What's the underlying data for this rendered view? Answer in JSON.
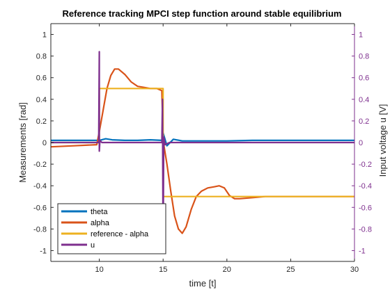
{
  "chart_data": {
    "type": "line",
    "title": "Reference tracking MPCI step function around stable equilibrium",
    "xlabel": "time [t]",
    "ylabel": "Measurements [rad]",
    "ylabel_right": "Input voltage u [V]",
    "xlim": [
      6.2,
      30
    ],
    "ylim": [
      -1.1,
      1.1
    ],
    "ylim_right": [
      -1.1,
      1.1
    ],
    "x_ticks": [
      10,
      15,
      20,
      25,
      30
    ],
    "y_ticks": [
      -1,
      -0.8,
      -0.6,
      -0.4,
      -0.2,
      0,
      0.2,
      0.4,
      0.6,
      0.8,
      1
    ],
    "y_ticks_right": [
      -1,
      -0.8,
      -0.6,
      -0.4,
      -0.2,
      0,
      0.2,
      0.4,
      0.6,
      0.8,
      1
    ],
    "grid": false,
    "legend_placement": "bottom-left",
    "right_axis_color": "#7E2F8E",
    "series": [
      {
        "name": "theta",
        "color": "#0072BD",
        "axis": "left",
        "x": [
          6.2,
          9.8,
          10.0,
          10.5,
          11.0,
          12.0,
          13.0,
          14.0,
          14.9,
          15.0,
          15.3,
          15.8,
          16.5,
          18.0,
          20.0,
          22.0,
          25.0,
          30.0
        ],
        "y": [
          0.02,
          0.02,
          0.02,
          0.035,
          0.025,
          0.02,
          0.02,
          0.025,
          0.02,
          0.09,
          -0.03,
          0.03,
          0.015,
          0.015,
          0.015,
          0.02,
          0.02,
          0.02
        ]
      },
      {
        "name": "alpha",
        "color": "#D95319",
        "axis": "left",
        "x": [
          6.2,
          8.0,
          9.8,
          10.0,
          10.3,
          10.6,
          10.9,
          11.2,
          11.5,
          12.0,
          12.5,
          13.0,
          13.5,
          14.0,
          14.5,
          14.9,
          15.0,
          15.3,
          15.6,
          15.9,
          16.2,
          16.5,
          16.8,
          17.2,
          17.6,
          18.0,
          18.5,
          19.0,
          19.4,
          19.8,
          20.2,
          20.6,
          21.0,
          22.0,
          23.0,
          25.0,
          30.0
        ],
        "y": [
          -0.04,
          -0.03,
          -0.02,
          0.1,
          0.3,
          0.5,
          0.62,
          0.68,
          0.68,
          0.63,
          0.56,
          0.52,
          0.51,
          0.5,
          0.5,
          0.48,
          0.02,
          -0.2,
          -0.45,
          -0.68,
          -0.8,
          -0.84,
          -0.78,
          -0.62,
          -0.5,
          -0.45,
          -0.42,
          -0.41,
          -0.4,
          -0.42,
          -0.49,
          -0.52,
          -0.52,
          -0.51,
          -0.5,
          -0.5,
          -0.5
        ]
      },
      {
        "name": "reference - alpha",
        "color": "#EDB120",
        "axis": "left",
        "x": [
          6.2,
          10.0,
          10.0,
          15.0,
          15.0,
          30.0
        ],
        "y": [
          0,
          0,
          0.5,
          0.5,
          -0.5,
          -0.5
        ]
      },
      {
        "name": "u",
        "color": "#7E2F8E",
        "axis": "right",
        "x": [
          6.2,
          9.95,
          10.0,
          10.0,
          10.05,
          10.2,
          11.0,
          12.0,
          14.9,
          14.95,
          15.0,
          15.05,
          15.15,
          15.5,
          16.5,
          30.0
        ],
        "y": [
          0,
          0,
          0.84,
          -0.08,
          0.02,
          0,
          0.0,
          0,
          0,
          0.4,
          -1.02,
          0.05,
          -0.02,
          0,
          0,
          0
        ]
      }
    ]
  }
}
